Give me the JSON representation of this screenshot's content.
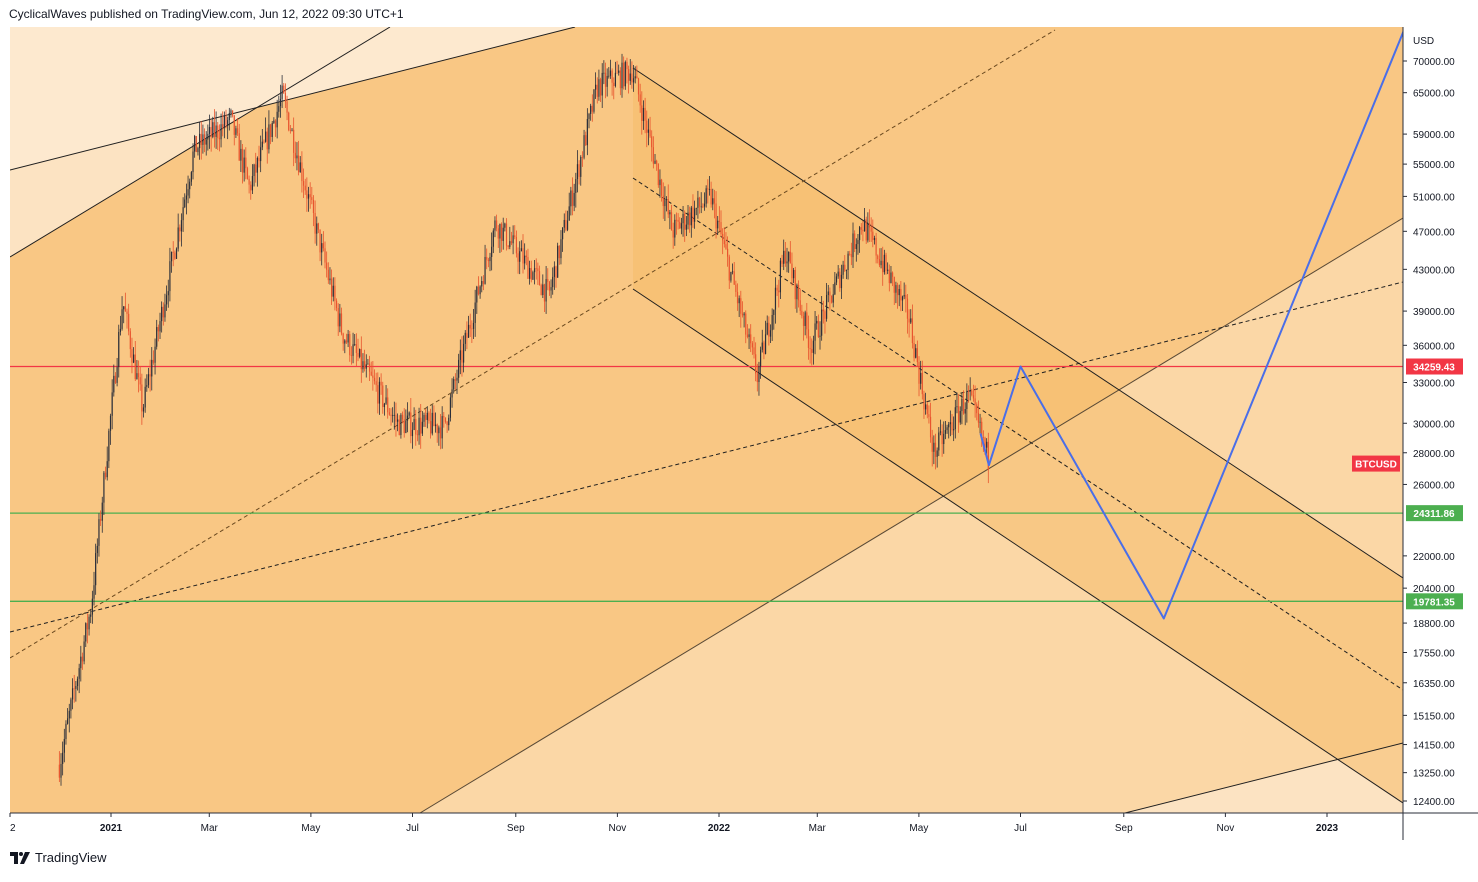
{
  "header": {
    "publisher": "CyclicalWaves published on TradingView.com, Jun 12, 2022 09:30 UTC+1"
  },
  "footer": {
    "brand": "TradingView",
    "logo_icon": "tradingview-logo-icon"
  },
  "colors": {
    "background": "#ffffff",
    "channel_fill": "#f9c784",
    "channel_fill_light": "#fbd7a6",
    "channel_fill_lighter": "#fce3c2",
    "resistance_line": "#f23645",
    "support_line": "#4caf50",
    "projection_line": "#4a6ee8",
    "candle_up": "#2a2e39",
    "candle_down": "#e8542e"
  },
  "chart_data": {
    "type": "candlestick",
    "title": "",
    "symbol": "BTCUSD",
    "currency": "USD",
    "x_tick_labels": [
      "2",
      "2021",
      "Mar",
      "May",
      "Jul",
      "Sep",
      "Nov",
      "2022",
      "Mar",
      "May",
      "Jul",
      "Sep",
      "Nov",
      "2023"
    ],
    "y_tick_labels": [
      70000,
      65000,
      59000,
      55000,
      51000,
      47000,
      43000,
      39000,
      36000,
      33000,
      30000,
      28000,
      26000,
      22000,
      20400,
      18800,
      17550,
      16350,
      15150,
      14150,
      13250,
      12400
    ],
    "y_scale": "log",
    "ylim": [
      11800,
      78000
    ],
    "grid": false,
    "horizontal_levels": [
      {
        "label": "34259.43",
        "value": 34259.43,
        "color": "#f23645"
      },
      {
        "label": "24311.86",
        "value": 24311.86,
        "color": "#4caf50"
      },
      {
        "label": "19781.35",
        "value": 19781.35,
        "color": "#4caf50"
      }
    ],
    "symbol_badge": {
      "label": "BTCUSD",
      "value": 27300,
      "color": "#f23645"
    },
    "price_path_approx": [
      {
        "x": "2020-12-01",
        "y": 13500
      },
      {
        "x": "2020-12-20",
        "y": 19500
      },
      {
        "x": "2021-01-08",
        "y": 40000
      },
      {
        "x": "2021-01-20",
        "y": 31000
      },
      {
        "x": "2021-02-20",
        "y": 57000
      },
      {
        "x": "2021-03-14",
        "y": 61000
      },
      {
        "x": "2021-03-25",
        "y": 52000
      },
      {
        "x": "2021-04-14",
        "y": 64500
      },
      {
        "x": "2021-05-20",
        "y": 37000
      },
      {
        "x": "2021-06-22",
        "y": 30000
      },
      {
        "x": "2021-07-20",
        "y": 29800
      },
      {
        "x": "2021-08-20",
        "y": 48000
      },
      {
        "x": "2021-09-21",
        "y": 40500
      },
      {
        "x": "2021-10-20",
        "y": 66000
      },
      {
        "x": "2021-11-10",
        "y": 68500
      },
      {
        "x": "2021-12-04",
        "y": 47000
      },
      {
        "x": "2021-12-27",
        "y": 51000
      },
      {
        "x": "2022-01-24",
        "y": 33500
      },
      {
        "x": "2022-02-10",
        "y": 45000
      },
      {
        "x": "2022-02-25",
        "y": 36000
      },
      {
        "x": "2022-03-28",
        "y": 48000
      },
      {
        "x": "2022-04-25",
        "y": 38500
      },
      {
        "x": "2022-05-10",
        "y": 28000
      },
      {
        "x": "2022-05-31",
        "y": 32000
      },
      {
        "x": "2022-06-12",
        "y": 27500
      }
    ],
    "projection_path": [
      {
        "x": "2022-06-07",
        "y": 29300
      },
      {
        "x": "2022-06-12",
        "y": 27200
      },
      {
        "x": "2022-07-01",
        "y": 34259
      },
      {
        "x": "2022-09-25",
        "y": 19000
      },
      {
        "x": "2023-02-20",
        "y": 78000
      }
    ]
  }
}
